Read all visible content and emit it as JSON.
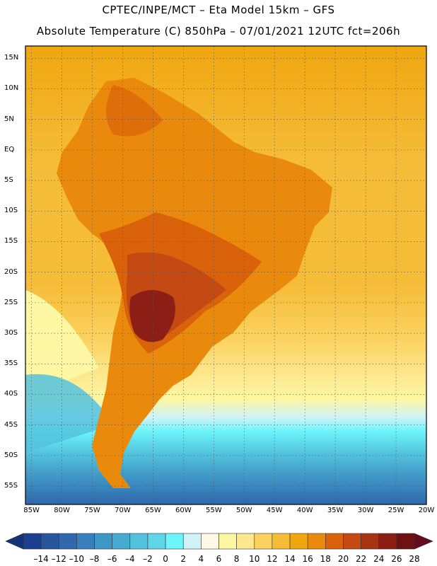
{
  "header": {
    "line1": "CPTEC/INPE/MCT –   Eta Model 15km – GFS",
    "line2": "Absolute Temperature (C) 850hPa – 07/01/2021 12UTC fct=206h"
  },
  "axes": {
    "lat_labels": [
      "15N",
      "10N",
      "5N",
      "EQ",
      "5S",
      "10S",
      "15S",
      "20S",
      "25S",
      "30S",
      "35S",
      "40S",
      "45S",
      "50S",
      "55S"
    ],
    "lat_values": [
      15,
      10,
      5,
      0,
      -5,
      -10,
      -15,
      -20,
      -25,
      -30,
      -35,
      -40,
      -45,
      -50,
      -55
    ],
    "lon_labels": [
      "85W",
      "80W",
      "75W",
      "70W",
      "65W",
      "60W",
      "55W",
      "50W",
      "45W",
      "40W",
      "35W",
      "30W",
      "25W",
      "20W"
    ],
    "lon_values": [
      -85,
      -80,
      -75,
      -70,
      -65,
      -60,
      -55,
      -50,
      -45,
      -40,
      -35,
      -30,
      -25,
      -20
    ],
    "lat_range": [
      -58,
      17
    ],
    "lon_range": [
      -86,
      -20
    ]
  },
  "colorbar": {
    "labels": [
      "-14",
      "-12",
      "-10",
      "-8",
      "-6",
      "-4",
      "-2",
      "0",
      "2",
      "4",
      "6",
      "8",
      "10",
      "12",
      "14",
      "16",
      "18",
      "20",
      "22",
      "24",
      "26",
      "28"
    ],
    "colors": [
      "#1c3f8f",
      "#27559e",
      "#2f68ad",
      "#3a7fbd",
      "#3f97c6",
      "#45abd0",
      "#53c2dd",
      "#5fd6e8",
      "#6cf5fb",
      "#cff3f8",
      "#fff8e4",
      "#fdf6a2",
      "#fde88f",
      "#fbd25f",
      "#f5bc38",
      "#f0a60f",
      "#e98a0c",
      "#d9620a",
      "#c44912",
      "#a83413",
      "#8c1e16",
      "#6e1110"
    ],
    "min_color": "#14347a",
    "max_color": "#660a1e"
  },
  "field": {
    "ocean_north": "#f5bc38",
    "ocean_mid": "#fdf6a2",
    "ocean_south": "#3f97c6",
    "land_warm": "#e98a0c",
    "land_hot": "#c44912",
    "land_hottest": "#8c1e16"
  }
}
